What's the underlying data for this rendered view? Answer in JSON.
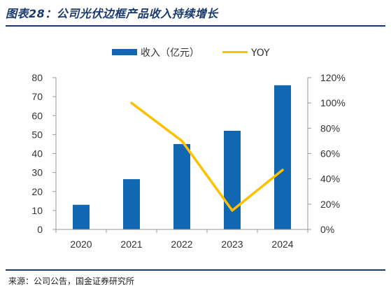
{
  "figure": {
    "title": "图表28：公司光伏边框产品收入持续增长",
    "source": "来源：公司公告，国金证券研究所"
  },
  "colors": {
    "bar": "#1167b1",
    "line": "#ffc000",
    "axis": "#999999",
    "rule": "#1a3a6e"
  },
  "chart_data": {
    "type": "bar",
    "title": "",
    "categories": [
      "2020",
      "2021",
      "2022",
      "2023",
      "2024"
    ],
    "series": [
      {
        "name": "收入（亿元）",
        "type": "bar",
        "axis": "left",
        "values": [
          13,
          26.5,
          45,
          52,
          76
        ]
      },
      {
        "name": "YOY",
        "type": "line",
        "axis": "right",
        "values": [
          null,
          1.0,
          0.7,
          0.15,
          0.47
        ]
      }
    ],
    "y_left": {
      "min": 0,
      "max": 80,
      "ticks": [
        0,
        10,
        20,
        30,
        40,
        50,
        60,
        70,
        80
      ],
      "tick_labels": [
        "0",
        "10",
        "20",
        "30",
        "40",
        "50",
        "60",
        "70",
        "80"
      ]
    },
    "y_right": {
      "min": 0,
      "max": 1.2,
      "ticks": [
        0,
        0.2,
        0.4,
        0.6,
        0.8,
        1.0,
        1.2
      ],
      "tick_labels": [
        "0%",
        "20%",
        "40%",
        "60%",
        "80%",
        "100%",
        "120%"
      ]
    },
    "xlabel": "",
    "ylabel": "",
    "legend": "top-center",
    "grid": false
  }
}
